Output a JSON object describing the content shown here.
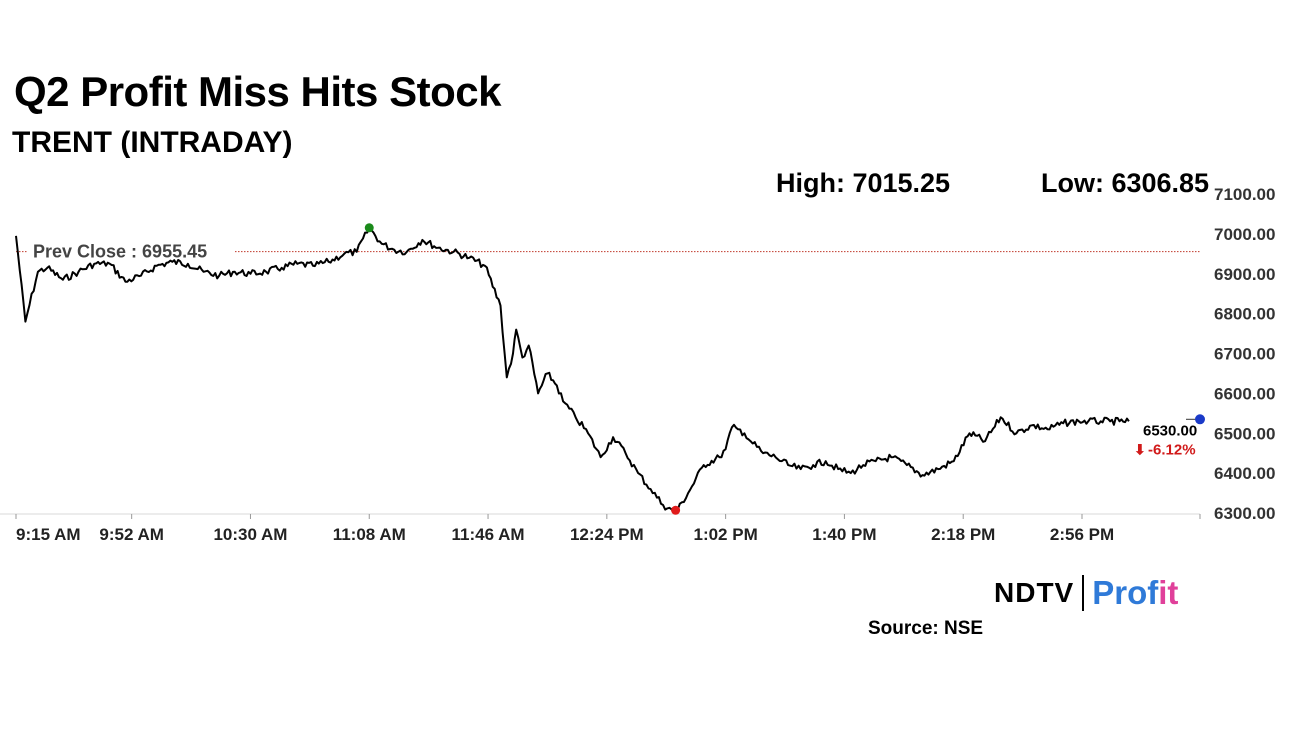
{
  "header": {
    "title": "Q2 Profit Miss Hits Stock",
    "subtitle": "TRENT (INTRADAY)",
    "high_label": "High: 7015.25",
    "low_label": "Low: 6306.85"
  },
  "footer": {
    "source": "Source: NSE",
    "logo_ndtv": "NDTV",
    "logo_profit_a": "Prof",
    "logo_profit_b": "it"
  },
  "chart_data": {
    "type": "line",
    "title": "Q2 Profit Miss Hits Stock",
    "subtitle": "TRENT (INTRADAY)",
    "x_ticks": [
      "9:15 AM",
      "9:52 AM",
      "10:30 AM",
      "11:08 AM",
      "11:46 AM",
      "12:24 PM",
      "1:02 PM",
      "1:40 PM",
      "2:18 PM",
      "2:56 PM"
    ],
    "y_ticks": [
      7100,
      7000,
      6900,
      6800,
      6700,
      6600,
      6500,
      6400,
      6300
    ],
    "y_tick_labels": [
      "7100.00",
      "7000.00",
      "6900.00",
      "6800.00",
      "6700.00",
      "6600.00",
      "6500.00",
      "6400.00",
      "6300.00"
    ],
    "ylim": [
      6300,
      7100
    ],
    "prev_close": 6955.45,
    "prev_close_label": "Prev Close : 6955.45",
    "high": 7015.25,
    "low": 6306.85,
    "last_price": "6530.00",
    "change_pct": "-6.12%",
    "colors": {
      "line": "#000000",
      "prev_close": "#c0392b",
      "high_marker": "#1a8a1a",
      "low_marker": "#e01b1b",
      "last_marker": "#1a3ac8",
      "change": "#d11a1a"
    },
    "series": [
      {
        "x": [
          "9:15 AM",
          "9:18 AM",
          "9:22 AM",
          "9:25 AM",
          "9:30 AM",
          "9:35 AM",
          "9:40 AM",
          "9:45 AM",
          "9:50 AM",
          "9:55 AM",
          "10:00 AM",
          "10:05 AM",
          "10:10 AM",
          "10:15 AM",
          "10:20 AM",
          "10:25 AM",
          "10:30 AM",
          "10:35 AM",
          "10:40 AM",
          "10:45 AM",
          "10:50 AM",
          "10:55 AM",
          "11:00 AM",
          "11:04 AM",
          "11:08 AM",
          "11:12 AM",
          "11:16 AM",
          "11:20 AM",
          "11:25 AM",
          "11:30 AM",
          "11:35 AM",
          "11:40 AM",
          "11:45 AM",
          "11:50 AM",
          "11:52 AM",
          "11:54 AM",
          "11:55 AM",
          "11:57 AM",
          "11:59 AM",
          "12:02 PM",
          "12:05 PM",
          "12:08 PM",
          "12:10 PM",
          "12:14 PM",
          "12:18 PM",
          "12:22 PM",
          "12:26 PM",
          "12:30 PM",
          "12:34 PM",
          "12:38 PM",
          "12:42 PM",
          "12:46 PM",
          "12:50 PM",
          "12:55 PM",
          "1:00 PM",
          "1:02 PM",
          "1:04 PM",
          "1:06 PM",
          "1:08 PM",
          "1:10 PM",
          "1:14 PM",
          "1:18 PM",
          "1:22 PM",
          "1:26 PM",
          "1:30 PM",
          "1:34 PM",
          "1:38 PM",
          "1:42 PM",
          "1:46 PM",
          "1:50 PM",
          "1:55 PM",
          "2:00 PM",
          "2:05 PM",
          "2:10 PM",
          "2:15 PM",
          "2:20 PM",
          "2:25 PM",
          "2:30 PM",
          "2:35 PM",
          "2:40 PM",
          "2:45 PM",
          "2:50 PM",
          "2:55 PM",
          "2:58 PM",
          "3:02 PM",
          "3:05 PM",
          "3:08 PM",
          "3:11 PM"
        ],
        "y": [
          6995,
          6780,
          6905,
          6915,
          6885,
          6905,
          6925,
          6925,
          6880,
          6895,
          6920,
          6930,
          6925,
          6905,
          6895,
          6905,
          6900,
          6905,
          6915,
          6925,
          6920,
          6930,
          6950,
          6955,
          7015,
          6975,
          6960,
          6955,
          6985,
          6965,
          6955,
          6940,
          6920,
          6820,
          6640,
          6700,
          6760,
          6690,
          6720,
          6600,
          6650,
          6620,
          6580,
          6540,
          6500,
          6440,
          6490,
          6450,
          6400,
          6360,
          6320,
          6300,
          6350,
          6420,
          6440,
          6460,
          6515,
          6510,
          6500,
          6480,
          6450,
          6440,
          6420,
          6410,
          6420,
          6430,
          6410,
          6400,
          6420,
          6430,
          6440,
          6420,
          6395,
          6410,
          6430,
          6500,
          6480,
          6540,
          6500,
          6520,
          6510,
          6525,
          6530,
          6530,
          6530,
          6530,
          6530,
          6530
        ]
      }
    ]
  }
}
